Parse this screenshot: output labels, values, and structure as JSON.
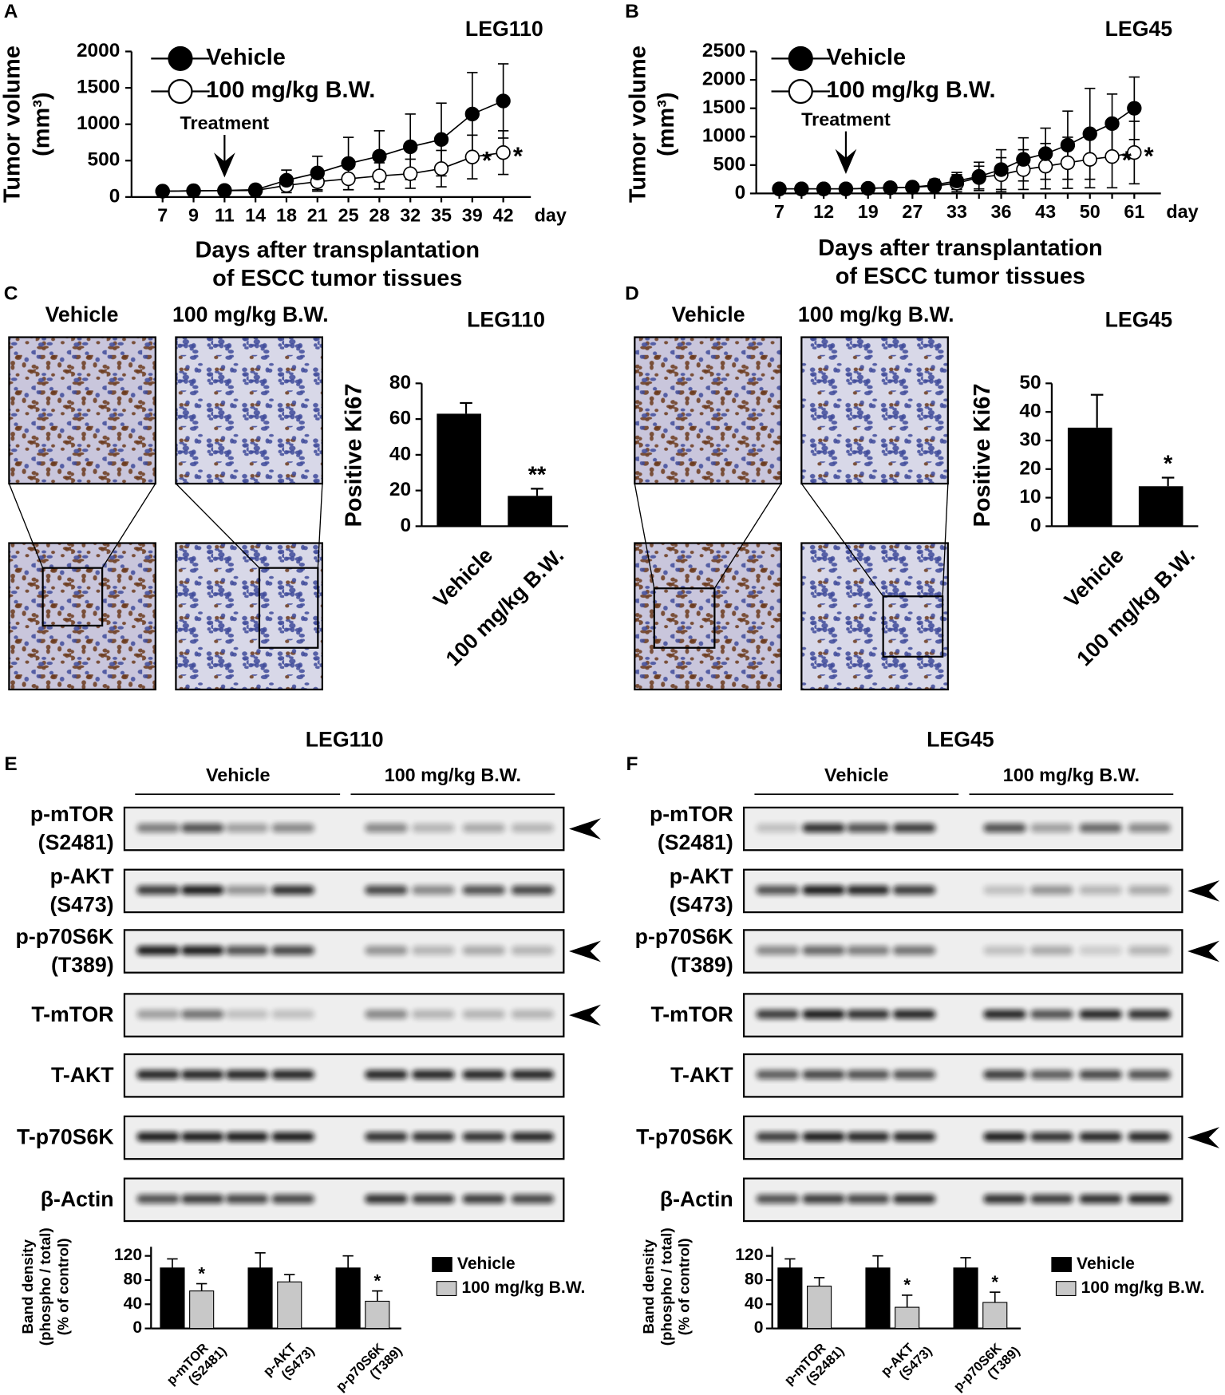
{
  "panel_labels": [
    "A",
    "B",
    "C",
    "D",
    "E",
    "F"
  ],
  "chart_data": [
    {
      "type": "line",
      "title": "LEG110",
      "y_label": [
        "Tumor volume",
        "(mm³)"
      ],
      "x_label": [
        "Days after transplantation",
        "of ESCC tumor tissues"
      ],
      "x_unit": "day",
      "categories": [
        "7",
        "9",
        "11",
        "14",
        "18",
        "21",
        "25",
        "28",
        "32",
        "35",
        "39",
        "42"
      ],
      "series": [
        {
          "name": "Vehicle",
          "color": "#000000",
          "values": [
            80,
            85,
            90,
            100,
            230,
            330,
            460,
            560,
            690,
            790,
            1140,
            1320
          ],
          "errors": [
            20,
            20,
            20,
            40,
            140,
            230,
            360,
            350,
            450,
            500,
            570,
            510
          ]
        },
        {
          "name": "100 mg/kg B.W.",
          "color": "#ffffff",
          "values": [
            80,
            85,
            88,
            90,
            160,
            210,
            250,
            290,
            320,
            390,
            550,
            610
          ],
          "errors": [
            20,
            20,
            20,
            30,
            100,
            130,
            150,
            180,
            200,
            250,
            300,
            300
          ]
        }
      ],
      "ylim": [
        0,
        2000
      ],
      "yticks": [
        0,
        500,
        1000,
        1500,
        2000
      ],
      "annotations": [
        {
          "text": "Treatment",
          "index": 2
        },
        {
          "text": "*",
          "series": 1,
          "index": 10
        },
        {
          "text": "*",
          "series": 1,
          "index": 11
        }
      ]
    },
    {
      "type": "line",
      "title": "LEG45",
      "y_label": [
        "Tumor volume",
        "(mm³)"
      ],
      "x_label": [
        "Days after transplantation",
        "of ESCC tumor tissues"
      ],
      "x_unit": "day",
      "categories": [
        "7",
        null,
        "12",
        null,
        "19",
        null,
        "27",
        null,
        "33",
        null,
        "36",
        null,
        "43",
        null,
        "50",
        null,
        "61"
      ],
      "series": [
        {
          "name": "Vehicle",
          "color": "#000000",
          "values": [
            80,
            80,
            80,
            80,
            90,
            100,
            110,
            150,
            220,
            300,
            420,
            600,
            700,
            850,
            1050,
            1230,
            1500
          ],
          "errors": [
            10,
            10,
            10,
            10,
            20,
            30,
            60,
            80,
            150,
            250,
            350,
            380,
            450,
            600,
            800,
            520,
            550
          ]
        },
        {
          "name": "100 mg/kg B.W.",
          "color": "#ffffff",
          "values": [
            80,
            80,
            80,
            80,
            90,
            100,
            110,
            130,
            180,
            280,
            330,
            420,
            480,
            540,
            600,
            650,
            720
          ],
          "errors": [
            10,
            10,
            10,
            10,
            20,
            40,
            80,
            120,
            150,
            200,
            300,
            350,
            400,
            450,
            500,
            550,
            550
          ]
        }
      ],
      "ylim": [
        0,
        2500
      ],
      "yticks": [
        0,
        500,
        1000,
        1500,
        2000,
        2500
      ],
      "annotations": [
        {
          "text": "Treatment",
          "index": 3
        },
        {
          "text": "*",
          "series": 1,
          "index": 15
        },
        {
          "text": "*",
          "series": 1,
          "index": 16
        }
      ]
    },
    {
      "type": "bar",
      "title": "LEG110",
      "y_label": [
        "Positive Ki67"
      ],
      "categories": [
        "Vehicle",
        "100 mg/kg B.W."
      ],
      "values": [
        63,
        17
      ],
      "errors": [
        6,
        4
      ],
      "color": "#000000",
      "ylim": [
        0,
        80
      ],
      "yticks": [
        0,
        20,
        40,
        60,
        80
      ],
      "annotations": [
        {
          "text": "**",
          "index": 1
        }
      ]
    },
    {
      "type": "bar",
      "title": "LEG45",
      "y_label": [
        "Positive Ki67"
      ],
      "categories": [
        "Vehicle",
        "100 mg/kg B.W."
      ],
      "values": [
        34.5,
        14
      ],
      "errors": [
        11.5,
        3
      ],
      "color": "#000000",
      "ylim": [
        0,
        50
      ],
      "yticks": [
        0,
        10,
        20,
        30,
        40,
        50
      ],
      "annotations": [
        {
          "text": "*",
          "index": 1
        }
      ]
    },
    {
      "type": "bar",
      "y_label": [
        "Band density",
        "(phospho / total)",
        "(% of control)"
      ],
      "categories": [
        [
          "p-mTOR",
          "(S2481)"
        ],
        [
          "p-AKT",
          "(S473)"
        ],
        [
          "p-p70S6K",
          "(T389)"
        ]
      ],
      "series": [
        {
          "name": "Vehicle",
          "color": "#000000",
          "values": [
            100,
            100,
            100
          ],
          "errors": [
            15,
            25,
            20
          ]
        },
        {
          "name": "100 mg/kg B.W.",
          "color": "#c8c8c8",
          "values": [
            62,
            77,
            45
          ],
          "errors": [
            12,
            12,
            17
          ]
        }
      ],
      "ylim": [
        0,
        135
      ],
      "yticks": [
        0,
        40,
        80,
        120
      ],
      "annotations": [
        {
          "text": "*",
          "series": 1,
          "index": 0
        },
        {
          "text": "*",
          "series": 1,
          "index": 2
        }
      ]
    },
    {
      "type": "bar",
      "y_label": [
        "Band density",
        "(phospho / total)",
        "(% of control)"
      ],
      "categories": [
        [
          "p-mTOR",
          "(S2481)"
        ],
        [
          "p-AKT",
          "(S473)"
        ],
        [
          "p-p70S6K",
          "(T389)"
        ]
      ],
      "series": [
        {
          "name": "Vehicle",
          "color": "#000000",
          "values": [
            100,
            100,
            100
          ],
          "errors": [
            15,
            20,
            17
          ]
        },
        {
          "name": "100 mg/kg B.W.",
          "color": "#c8c8c8",
          "values": [
            70,
            35,
            43
          ],
          "errors": [
            14,
            20,
            17
          ]
        }
      ],
      "ylim": [
        0,
        135
      ],
      "yticks": [
        0,
        40,
        80,
        120
      ],
      "annotations": [
        {
          "text": "*",
          "series": 1,
          "index": 1
        },
        {
          "text": "*",
          "series": 1,
          "index": 2
        }
      ]
    }
  ],
  "histology": [
    {
      "labels": [
        "Vehicle",
        "100 mg/kg B.W."
      ]
    },
    {
      "labels": [
        "Vehicle",
        "100 mg/kg B.W."
      ]
    }
  ],
  "blots": [
    {
      "title": "LEG110",
      "groups": [
        "Vehicle",
        "100 mg/kg B.W."
      ],
      "rows": [
        [
          "p-mTOR",
          "(S2481)"
        ],
        [
          "p-AKT",
          "(S473)"
        ],
        [
          "p-p70S6K",
          "(T389)"
        ],
        [
          "T-mTOR"
        ],
        [
          "T-AKT"
        ],
        [
          "T-p70S6K"
        ],
        [
          "β-Actin"
        ]
      ]
    },
    {
      "title": "LEG45",
      "groups": [
        "Vehicle",
        "100 mg/kg B.W."
      ],
      "rows": [
        [
          "p-mTOR",
          "(S2481)"
        ],
        [
          "p-AKT",
          "(S473)"
        ],
        [
          "p-p70S6K",
          "(T389)"
        ],
        [
          "T-mTOR"
        ],
        [
          "T-AKT"
        ],
        [
          "T-p70S6K"
        ],
        [
          "β-Actin"
        ]
      ]
    }
  ]
}
